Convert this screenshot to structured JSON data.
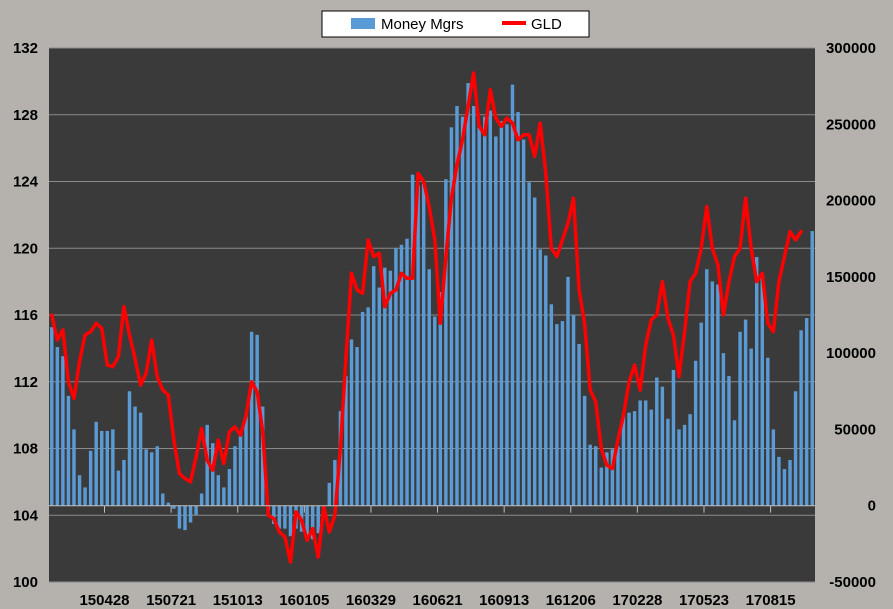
{
  "chart_data": {
    "type": "bar+line",
    "legend": {
      "placement": "top-center",
      "entries": [
        {
          "name": "Money Mgrs",
          "type": "bar",
          "color": "#5b9bd5"
        },
        {
          "name": "GLD",
          "type": "line",
          "color": "#ff0000"
        }
      ]
    },
    "plot_background": "#3a3a3a",
    "grid": true,
    "y_left": {
      "min": 100,
      "max": 132,
      "step": 4,
      "ticks": [
        "100",
        "104",
        "108",
        "112",
        "116",
        "120",
        "124",
        "128",
        "132"
      ]
    },
    "y_right": {
      "min": -50000,
      "max": 300000,
      "step": 50000,
      "ticks": [
        "-50000",
        "0",
        "50000",
        "100000",
        "150000",
        "200000",
        "250000",
        "300000"
      ]
    },
    "x_tick_labels": [
      "150428",
      "150721",
      "151013",
      "160105",
      "160329",
      "160621",
      "160913",
      "161206",
      "170228",
      "170523",
      "170815"
    ],
    "x_tick_positions": [
      10,
      22,
      34,
      46,
      58,
      70,
      82,
      94,
      106,
      118,
      130
    ],
    "series": [
      {
        "name": "Money Mgrs",
        "axis": "right",
        "values": [
          117000,
          104000,
          98000,
          72000,
          50000,
          20000,
          12000,
          36000,
          55000,
          49000,
          49000,
          50000,
          23000,
          30000,
          75000,
          65000,
          61000,
          37000,
          35000,
          39000,
          8000,
          2000,
          -2000,
          -15000,
          -16000,
          -11000,
          -6000,
          8000,
          53000,
          41000,
          20000,
          12000,
          24000,
          39000,
          47000,
          60000,
          114000,
          112000,
          65000,
          -3000,
          -12000,
          -15000,
          -15000,
          -20000,
          -15000,
          -17000,
          -21000,
          -22000,
          -18000,
          -7000,
          15000,
          30000,
          62000,
          85000,
          109000,
          104000,
          127000,
          130000,
          157000,
          143000,
          156000,
          154000,
          169000,
          171000,
          175000,
          217000,
          210000,
          211000,
          155000,
          124000,
          140000,
          214000,
          248000,
          262000,
          255000,
          277000,
          262000,
          248000,
          255000,
          259000,
          242000,
          252000,
          250000,
          276000,
          258000,
          240000,
          212000,
          202000,
          168000,
          164000,
          132000,
          119000,
          121000,
          150000,
          125000,
          106000,
          72000,
          40000,
          39000,
          25000,
          35000,
          37000,
          39000,
          60000,
          61000,
          62000,
          69000,
          69000,
          63000,
          84000,
          78000,
          57000,
          89000,
          50000,
          53000,
          60000,
          95000,
          120000,
          155000,
          147000,
          145000,
          100000,
          85000,
          56000,
          114000,
          122000,
          103000,
          163000,
          150000,
          97000,
          50000,
          32000,
          24000,
          30000,
          75000,
          115000,
          123000,
          180000
        ],
        "color": "#5b9bd5"
      },
      {
        "name": "GLD",
        "axis": "left",
        "values": [
          116.0,
          114.5,
          115.1,
          112.0,
          111.0,
          113.2,
          114.8,
          115.0,
          115.5,
          115.2,
          113.0,
          112.9,
          113.5,
          116.5,
          114.8,
          113.4,
          111.8,
          112.5,
          114.5,
          112.3,
          111.5,
          111.2,
          108.5,
          106.5,
          106.2,
          106.0,
          107.5,
          109.2,
          107.3,
          106.7,
          108.5,
          107.1,
          109.0,
          109.3,
          108.8,
          110.0,
          112.0,
          111.4,
          109.0,
          104.0,
          103.8,
          103.0,
          102.7,
          101.2,
          104.2,
          103.7,
          102.5,
          103.2,
          101.5,
          104.5,
          103.0,
          104.0,
          108.0,
          113.5,
          118.5,
          117.5,
          117.3,
          120.5,
          119.5,
          119.7,
          116.5,
          117.3,
          117.5,
          118.5,
          118.2,
          118.2,
          124.5,
          124.0,
          122.5,
          120.5,
          115.5,
          119.5,
          123.0,
          125.0,
          126.5,
          128.5,
          130.5,
          127.3,
          126.8,
          129.5,
          127.8,
          127.3,
          127.8,
          127.5,
          126.5,
          126.8,
          126.8,
          125.5,
          127.5,
          124.5,
          120.0,
          119.5,
          120.5,
          121.5,
          123.0,
          117.5,
          115.5,
          111.5,
          110.8,
          108.0,
          107.0,
          106.8,
          108.5,
          110.0,
          112.0,
          113.0,
          111.5,
          114.2,
          115.7,
          116.0,
          118.0,
          115.8,
          114.8,
          112.3,
          115.0,
          118.0,
          118.5,
          120.0,
          122.5,
          120.0,
          119.0,
          116.0,
          118.0,
          119.5,
          120.0,
          123.0,
          120.0,
          118.0,
          118.5,
          115.5,
          115.0,
          118.0,
          119.5,
          121.0,
          120.5,
          121.0
        ]
      }
    ]
  }
}
